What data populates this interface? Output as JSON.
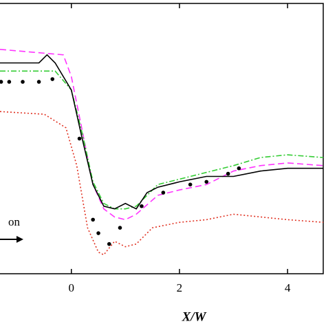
{
  "chart_data": {
    "type": "line",
    "x_label": "X/W",
    "annotation": "on",
    "xlim": [
      -1.32,
      4.66
    ],
    "xticks": [
      0,
      2,
      4
    ],
    "ylim": [
      0,
      1
    ],
    "series": [
      {
        "color": "#ff33ff",
        "style": "dashed",
        "x": [
          -1.32,
          -0.15,
          0,
          0.2,
          0.4,
          0.6,
          0.8,
          1,
          1.2,
          1.6,
          2,
          2.5,
          3,
          3.5,
          4,
          4.66
        ],
        "values": [
          0.83,
          0.81,
          0.73,
          0.53,
          0.33,
          0.24,
          0.21,
          0.2,
          0.22,
          0.29,
          0.31,
          0.33,
          0.38,
          0.4,
          0.41,
          0.4
        ]
      },
      {
        "color": "#33cc33",
        "style": "dashdot",
        "x": [
          -1.32,
          -0.3,
          0,
          0.2,
          0.4,
          0.6,
          0.8,
          1,
          1.2,
          1.6,
          2,
          3,
          3.5,
          4,
          4.66
        ],
        "values": [
          0.75,
          0.75,
          0.68,
          0.52,
          0.34,
          0.26,
          0.24,
          0.24,
          0.25,
          0.33,
          0.35,
          0.4,
          0.43,
          0.44,
          0.43
        ]
      },
      {
        "color": "#e03020",
        "style": "dotted",
        "x": [
          -1.32,
          -0.5,
          -0.1,
          0.1,
          0.3,
          0.5,
          0.6,
          0.8,
          1,
          1.2,
          1.5,
          2,
          2.5,
          3,
          4,
          4.66
        ],
        "values": [
          0.6,
          0.59,
          0.54,
          0.4,
          0.17,
          0.08,
          0.07,
          0.12,
          0.1,
          0.11,
          0.17,
          0.19,
          0.2,
          0.22,
          0.2,
          0.19
        ]
      },
      {
        "color": "#000000",
        "style": "solid",
        "x": [
          -1.32,
          -0.6,
          -0.45,
          -0.3,
          0,
          0.2,
          0.4,
          0.6,
          0.8,
          1,
          1.2,
          1.4,
          1.6,
          2,
          2.5,
          3,
          3.5,
          4,
          4.66
        ],
        "values": [
          0.78,
          0.78,
          0.81,
          0.78,
          0.68,
          0.5,
          0.33,
          0.25,
          0.24,
          0.26,
          0.24,
          0.3,
          0.32,
          0.34,
          0.36,
          0.36,
          0.38,
          0.39,
          0.39
        ]
      },
      {
        "color": "#000000",
        "style": "dots",
        "x": [
          -1.3,
          -1.15,
          -0.9,
          -0.6,
          -0.35,
          0.15,
          0.4,
          0.5,
          0.7,
          0.9,
          1.3,
          1.7,
          2.2,
          2.5,
          2.9,
          3.1
        ],
        "values": [
          0.71,
          0.71,
          0.71,
          0.71,
          0.72,
          0.5,
          0.2,
          0.15,
          0.11,
          0.17,
          0.25,
          0.3,
          0.33,
          0.34,
          0.37,
          0.39
        ]
      }
    ]
  }
}
